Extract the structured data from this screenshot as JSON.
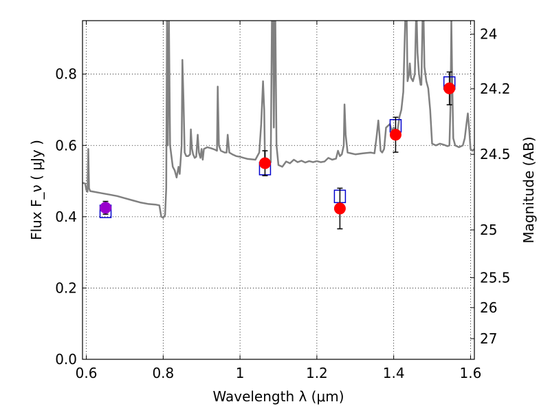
{
  "chart_data": {
    "type": "scatter",
    "xlabel": "Wavelength  λ (μm)",
    "ylabel": "Flux  F_ν  ( μJy )",
    "ylabel_right": "Magnitude (AB)",
    "xlim": [
      0.59,
      1.61
    ],
    "ylim": [
      0.0,
      0.95
    ],
    "grid": true,
    "x_ticks": [
      {
        "value": 0.6,
        "label": "0.6"
      },
      {
        "value": 0.8,
        "label": "0.8"
      },
      {
        "value": 1.0,
        "label": "1"
      },
      {
        "value": 1.2,
        "label": "1.2"
      },
      {
        "value": 1.4,
        "label": "1.4"
      },
      {
        "value": 1.6,
        "label": "1.6"
      }
    ],
    "y_ticks": [
      {
        "value": 0.0,
        "label": "0.0"
      },
      {
        "value": 0.2,
        "label": "0.2"
      },
      {
        "value": 0.4,
        "label": "0.4"
      },
      {
        "value": 0.6,
        "label": "0.6"
      },
      {
        "value": 0.8,
        "label": "0.8"
      }
    ],
    "mag_ticks": [
      {
        "label": "24",
        "flux": 0.912
      },
      {
        "label": "24.2",
        "flux": 0.759
      },
      {
        "label": "24.5",
        "flux": 0.575
      },
      {
        "label": "25",
        "flux": 0.363
      },
      {
        "label": "25.5",
        "flux": 0.229
      },
      {
        "label": "26",
        "flux": 0.145
      },
      {
        "label": "27",
        "flux": 0.058
      }
    ],
    "colors": {
      "model": "#808080",
      "model_points": "#0000cc",
      "observed": "#ff0000",
      "observed_first": "#9900cc",
      "errorbar": "#000000",
      "grid": "#000000"
    },
    "model_sed": [
      [
        0.59,
        0.495
      ],
      [
        0.597,
        0.493
      ],
      [
        0.6,
        0.475
      ],
      [
        0.603,
        0.47
      ],
      [
        0.605,
        0.59
      ],
      [
        0.607,
        0.48
      ],
      [
        0.61,
        0.472
      ],
      [
        0.62,
        0.47
      ],
      [
        0.64,
        0.466
      ],
      [
        0.66,
        0.462
      ],
      [
        0.68,
        0.458
      ],
      [
        0.7,
        0.452
      ],
      [
        0.72,
        0.446
      ],
      [
        0.74,
        0.44
      ],
      [
        0.76,
        0.436
      ],
      [
        0.78,
        0.434
      ],
      [
        0.79,
        0.432
      ],
      [
        0.795,
        0.4
      ],
      [
        0.8,
        0.397
      ],
      [
        0.805,
        0.405
      ],
      [
        0.808,
        0.48
      ],
      [
        0.81,
        0.95
      ],
      [
        0.812,
        0.6
      ],
      [
        0.815,
        0.95
      ],
      [
        0.818,
        0.6
      ],
      [
        0.825,
        0.54
      ],
      [
        0.83,
        0.53
      ],
      [
        0.835,
        0.51
      ],
      [
        0.84,
        0.54
      ],
      [
        0.843,
        0.52
      ],
      [
        0.848,
        0.6
      ],
      [
        0.85,
        0.84
      ],
      [
        0.853,
        0.72
      ],
      [
        0.856,
        0.58
      ],
      [
        0.86,
        0.57
      ],
      [
        0.865,
        0.57
      ],
      [
        0.87,
        0.575
      ],
      [
        0.872,
        0.645
      ],
      [
        0.875,
        0.59
      ],
      [
        0.878,
        0.575
      ],
      [
        0.882,
        0.565
      ],
      [
        0.886,
        0.568
      ],
      [
        0.89,
        0.63
      ],
      [
        0.893,
        0.58
      ],
      [
        0.897,
        0.565
      ],
      [
        0.9,
        0.59
      ],
      [
        0.903,
        0.56
      ],
      [
        0.906,
        0.59
      ],
      [
        0.915,
        0.595
      ],
      [
        0.925,
        0.592
      ],
      [
        0.935,
        0.588
      ],
      [
        0.94,
        0.585
      ],
      [
        0.942,
        0.765
      ],
      [
        0.945,
        0.6
      ],
      [
        0.95,
        0.585
      ],
      [
        0.96,
        0.58
      ],
      [
        0.965,
        0.58
      ],
      [
        0.968,
        0.63
      ],
      [
        0.972,
        0.58
      ],
      [
        0.98,
        0.575
      ],
      [
        0.99,
        0.57
      ],
      [
        1.0,
        0.568
      ],
      [
        1.01,
        0.565
      ],
      [
        1.02,
        0.562
      ],
      [
        1.04,
        0.56
      ],
      [
        1.05,
        0.58
      ],
      [
        1.055,
        0.66
      ],
      [
        1.06,
        0.78
      ],
      [
        1.063,
        0.7
      ],
      [
        1.065,
        0.56
      ],
      [
        1.068,
        0.552
      ],
      [
        1.07,
        0.555
      ],
      [
        1.075,
        0.55
      ],
      [
        1.08,
        0.553
      ],
      [
        1.083,
        0.95
      ],
      [
        1.086,
        0.95
      ],
      [
        1.088,
        0.65
      ],
      [
        1.09,
        0.95
      ],
      [
        1.092,
        0.95
      ],
      [
        1.095,
        0.6
      ],
      [
        1.1,
        0.545
      ],
      [
        1.11,
        0.54
      ],
      [
        1.12,
        0.555
      ],
      [
        1.13,
        0.55
      ],
      [
        1.14,
        0.56
      ],
      [
        1.15,
        0.553
      ],
      [
        1.16,
        0.557
      ],
      [
        1.17,
        0.552
      ],
      [
        1.18,
        0.556
      ],
      [
        1.19,
        0.553
      ],
      [
        1.2,
        0.556
      ],
      [
        1.21,
        0.553
      ],
      [
        1.22,
        0.555
      ],
      [
        1.23,
        0.565
      ],
      [
        1.24,
        0.56
      ],
      [
        1.25,
        0.563
      ],
      [
        1.255,
        0.585
      ],
      [
        1.26,
        0.57
      ],
      [
        1.265,
        0.575
      ],
      [
        1.27,
        0.6
      ],
      [
        1.272,
        0.715
      ],
      [
        1.275,
        0.63
      ],
      [
        1.28,
        0.58
      ],
      [
        1.3,
        0.575
      ],
      [
        1.32,
        0.578
      ],
      [
        1.34,
        0.58
      ],
      [
        1.35,
        0.578
      ],
      [
        1.355,
        0.62
      ],
      [
        1.36,
        0.67
      ],
      [
        1.363,
        0.63
      ],
      [
        1.366,
        0.585
      ],
      [
        1.37,
        0.58
      ],
      [
        1.375,
        0.59
      ],
      [
        1.38,
        0.65
      ],
      [
        1.39,
        0.66
      ],
      [
        1.395,
        0.64
      ],
      [
        1.4,
        0.65
      ],
      [
        1.41,
        0.64
      ],
      [
        1.415,
        0.68
      ],
      [
        1.42,
        0.7
      ],
      [
        1.425,
        0.75
      ],
      [
        1.43,
        0.95
      ],
      [
        1.434,
        0.95
      ],
      [
        1.436,
        0.78
      ],
      [
        1.44,
        0.8
      ],
      [
        1.442,
        0.83
      ],
      [
        1.445,
        0.79
      ],
      [
        1.45,
        0.78
      ],
      [
        1.455,
        0.8
      ],
      [
        1.458,
        0.95
      ],
      [
        1.46,
        0.95
      ],
      [
        1.462,
        0.86
      ],
      [
        1.466,
        0.8
      ],
      [
        1.47,
        0.77
      ],
      [
        1.472,
        0.77
      ],
      [
        1.475,
        0.95
      ],
      [
        1.478,
        0.95
      ],
      [
        1.48,
        0.82
      ],
      [
        1.485,
        0.78
      ],
      [
        1.49,
        0.76
      ],
      [
        1.495,
        0.7
      ],
      [
        1.5,
        0.605
      ],
      [
        1.51,
        0.6
      ],
      [
        1.52,
        0.605
      ],
      [
        1.53,
        0.602
      ],
      [
        1.54,
        0.598
      ],
      [
        1.545,
        0.6
      ],
      [
        1.548,
        0.72
      ],
      [
        1.55,
        0.95
      ],
      [
        1.552,
        0.8
      ],
      [
        1.555,
        0.62
      ],
      [
        1.56,
        0.6
      ],
      [
        1.57,
        0.595
      ],
      [
        1.58,
        0.6
      ],
      [
        1.585,
        0.62
      ],
      [
        1.59,
        0.665
      ],
      [
        1.593,
        0.69
      ],
      [
        1.597,
        0.64
      ],
      [
        1.6,
        0.59
      ],
      [
        1.605,
        0.585
      ],
      [
        1.61,
        0.59
      ]
    ],
    "model_points": [
      {
        "x": 0.65,
        "y": 0.415
      },
      {
        "x": 1.065,
        "y": 0.535
      },
      {
        "x": 1.26,
        "y": 0.457
      },
      {
        "x": 1.405,
        "y": 0.655
      },
      {
        "x": 1.545,
        "y": 0.775
      }
    ],
    "observed": [
      {
        "x": 0.65,
        "y": 0.425,
        "err": 0.018
      },
      {
        "x": 1.065,
        "y": 0.55,
        "err": 0.035
      },
      {
        "x": 1.26,
        "y": 0.423,
        "err": 0.057
      },
      {
        "x": 1.405,
        "y": 0.63,
        "err": 0.049
      },
      {
        "x": 1.545,
        "y": 0.76,
        "err": 0.046
      }
    ]
  }
}
